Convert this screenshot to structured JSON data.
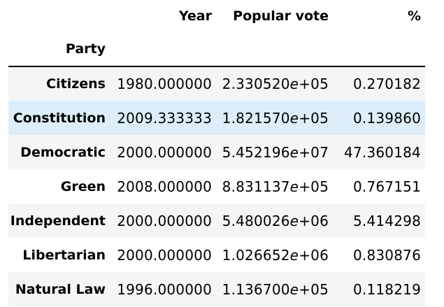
{
  "table": {
    "columns": [
      "Year",
      "Popular vote",
      "%"
    ],
    "index_name": "Party",
    "highlight_color": "#ddeefa",
    "stripe_color": "#f5f5f5",
    "rows": [
      {
        "party": "Citizens",
        "year": "1980.000000",
        "vote_mantissa": "2.330520",
        "vote_exp": "+05",
        "pct": "0.270182"
      },
      {
        "party": "Constitution",
        "year": "2009.333333",
        "vote_mantissa": "1.821570",
        "vote_exp": "+05",
        "pct": "0.139860"
      },
      {
        "party": "Democratic",
        "year": "2000.000000",
        "vote_mantissa": "5.452196",
        "vote_exp": "+07",
        "pct": "47.360184"
      },
      {
        "party": "Green",
        "year": "2008.000000",
        "vote_mantissa": "8.831137",
        "vote_exp": "+05",
        "pct": "0.767151"
      },
      {
        "party": "Independent",
        "year": "2000.000000",
        "vote_mantissa": "5.480026",
        "vote_exp": "+06",
        "pct": "5.414298"
      },
      {
        "party": "Libertarian",
        "year": "2000.000000",
        "vote_mantissa": "1.026652",
        "vote_exp": "+06",
        "pct": "0.830876"
      },
      {
        "party": "Natural Law",
        "year": "1996.000000",
        "vote_mantissa": "1.136700",
        "vote_exp": "+05",
        "pct": "0.118219"
      }
    ]
  }
}
